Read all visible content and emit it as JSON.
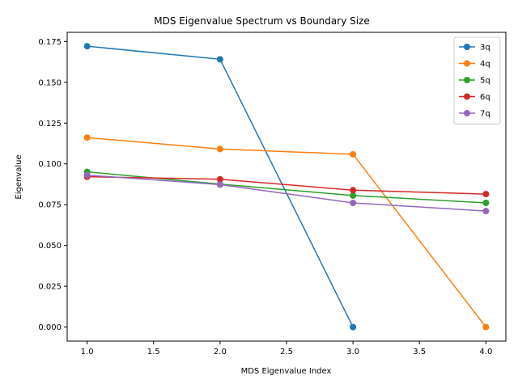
{
  "chart_data": {
    "type": "line",
    "title": "MDS Eigenvalue Spectrum vs Boundary Size",
    "xlabel": "MDS Eigenvalue Index",
    "ylabel": "Eigenvalue",
    "xlim": [
      0.85,
      4.15
    ],
    "ylim": [
      -0.0086,
      0.1806
    ],
    "xticks": [
      1.0,
      1.5,
      2.0,
      2.5,
      3.0,
      3.5,
      4.0
    ],
    "xtick_labels": [
      "1.0",
      "1.5",
      "2.0",
      "2.5",
      "3.0",
      "3.5",
      "4.0"
    ],
    "yticks": [
      0.0,
      0.025,
      0.05,
      0.075,
      0.1,
      0.125,
      0.15,
      0.175
    ],
    "ytick_labels": [
      "0.000",
      "0.025",
      "0.050",
      "0.075",
      "0.100",
      "0.125",
      "0.150",
      "0.175"
    ],
    "grid": false,
    "legend_position": "top-right",
    "series": [
      {
        "name": "3q",
        "color": "#1f77b4",
        "x": [
          1,
          2,
          3
        ],
        "y": [
          0.1721,
          0.1641,
          0.0
        ]
      },
      {
        "name": "4q",
        "color": "#ff7f0e",
        "x": [
          1,
          2,
          3,
          4
        ],
        "y": [
          0.1161,
          0.1091,
          0.1059,
          0.0
        ]
      },
      {
        "name": "5q",
        "color": "#2ca02c",
        "x": [
          1,
          2,
          3,
          4
        ],
        "y": [
          0.0951,
          0.0876,
          0.0806,
          0.0761
        ]
      },
      {
        "name": "6q",
        "color": "#d62728",
        "x": [
          1,
          2,
          3,
          4
        ],
        "y": [
          0.0921,
          0.0906,
          0.0839,
          0.0815
        ]
      },
      {
        "name": "7q",
        "color": "#9467bd",
        "x": [
          1,
          2,
          3,
          4
        ],
        "y": [
          0.0931,
          0.0873,
          0.0761,
          0.0711
        ]
      }
    ]
  }
}
